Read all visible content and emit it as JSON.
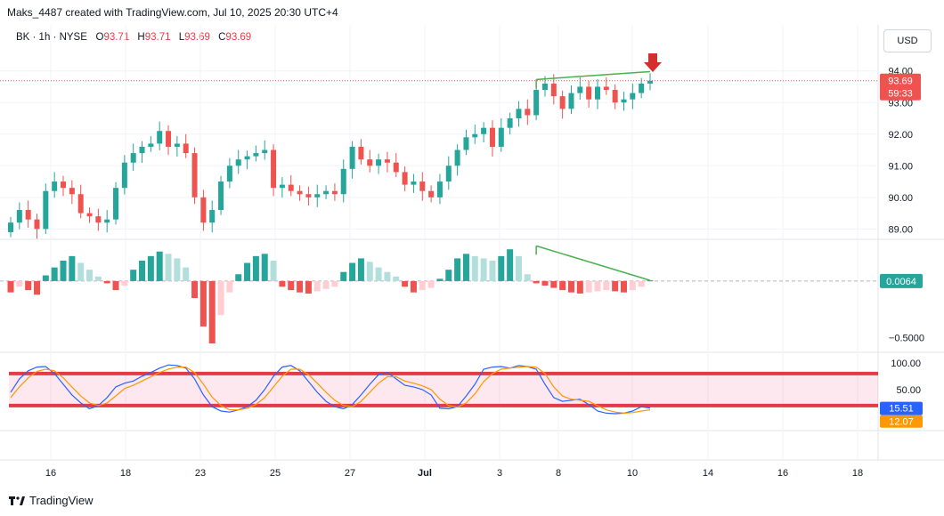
{
  "header": {
    "credit": "Maks_4487 created with TradingView.com, Jul 10, 2025 20:30 UTC+4"
  },
  "legend": {
    "symbol": "BK · 1h · NYSE",
    "open_label": "O",
    "open": "93.71",
    "high_label": "H",
    "high": "93.71",
    "low_label": "L",
    "low": "93.69",
    "close_label": "C",
    "close": "93.69"
  },
  "currency": "USD",
  "footer": {
    "brand": "TradingView"
  },
  "colors": {
    "up": "#26a69a",
    "down": "#ef5350",
    "up_light": "#b2dfdb",
    "down_light": "#ffcdd2",
    "trendline": "#4caf50",
    "stoch_k": "#2962ff",
    "stoch_d": "#ff9800",
    "band": "#e53946",
    "arrow": "#d32f2f"
  },
  "chart_data": [
    {
      "type": "candlestick",
      "symbol": "BK",
      "interval": "1h",
      "y_ticks": [
        "94.00",
        "93.00",
        "92.00",
        "91.00",
        "90.00",
        "89.00"
      ],
      "ylim": [
        88.7,
        95.4
      ],
      "last_price": "93.69",
      "countdown": "59:33",
      "trendline": [
        [
          117,
          93.73
        ],
        [
          178,
          93.98
        ]
      ],
      "close": [
        89.2,
        89.6,
        89.3,
        89.0,
        90.2,
        90.5,
        90.3,
        90.1,
        89.5,
        89.4,
        89.2,
        89.3,
        90.3,
        91.1,
        91.4,
        91.6,
        91.7,
        92.1,
        91.6,
        91.7,
        91.4,
        90.0,
        89.2,
        89.6,
        90.5,
        91.0,
        91.2,
        91.3,
        91.4,
        91.5,
        90.3,
        90.4,
        90.2,
        90.1,
        90.0,
        90.1,
        90.2,
        90.1,
        90.9,
        91.6,
        91.2,
        91.0,
        91.2,
        91.1,
        90.8,
        90.4,
        90.5,
        90.2,
        90.0,
        90.5,
        91.0,
        91.5,
        91.9,
        92.0,
        92.2,
        91.6,
        92.2,
        92.5,
        92.8,
        92.6,
        93.4,
        93.6,
        93.2,
        92.8,
        93.3,
        93.5,
        93.1,
        93.5,
        93.4,
        93.0,
        93.1,
        93.3,
        93.6,
        93.69
      ],
      "x_ticks": [
        "16",
        "18",
        "23",
        "25",
        "27",
        "Jul",
        "3",
        "8",
        "10",
        "14",
        "16",
        "18"
      ]
    },
    {
      "type": "bar",
      "indicator": "histogram oscillator",
      "y_ticks": [
        "−0.5000"
      ],
      "last_value": "0.0064",
      "ylim": [
        -0.62,
        0.36
      ],
      "trendline": [
        [
          117,
          0.31
        ],
        [
          146,
          0.0064
        ]
      ],
      "values": [
        -0.1,
        -0.05,
        -0.08,
        -0.12,
        0.05,
        0.12,
        0.18,
        0.22,
        0.16,
        0.1,
        0.04,
        -0.02,
        -0.08,
        -0.04,
        0.1,
        0.18,
        0.22,
        0.26,
        0.24,
        0.2,
        0.12,
        -0.15,
        -0.4,
        -0.55,
        -0.3,
        -0.1,
        0.06,
        0.16,
        0.22,
        0.24,
        0.18,
        -0.05,
        -0.08,
        -0.1,
        -0.11,
        -0.09,
        -0.07,
        -0.05,
        0.08,
        0.16,
        0.2,
        0.17,
        0.12,
        0.08,
        0.04,
        -0.05,
        -0.1,
        -0.08,
        -0.06,
        0.02,
        0.1,
        0.2,
        0.24,
        0.22,
        0.2,
        0.18,
        0.22,
        0.28,
        0.22,
        0.06,
        -0.02,
        -0.04,
        -0.06,
        -0.08,
        -0.1,
        -0.11,
        -0.1,
        -0.09,
        -0.08,
        -0.09,
        -0.1,
        -0.08,
        -0.05,
        0.0064
      ]
    },
    {
      "type": "line",
      "indicator": "stochastic",
      "y_ticks": [
        "100.00",
        "50.00"
      ],
      "ylim": [
        -25,
        118
      ],
      "band": [
        80,
        20
      ],
      "series": [
        {
          "values": [
            45,
            70,
            85,
            92,
            93,
            80,
            60,
            40,
            25,
            14,
            20,
            35,
            55,
            62,
            66,
            75,
            82,
            90,
            96,
            95,
            90,
            70,
            40,
            18,
            10,
            8,
            12,
            18,
            30,
            50,
            75,
            92,
            95,
            85,
            65,
            45,
            28,
            18,
            14,
            22,
            40,
            60,
            78,
            82,
            70,
            58,
            55,
            50,
            40,
            15,
            14,
            18,
            38,
            60,
            88,
            92,
            93,
            90,
            95,
            93,
            88,
            60,
            35,
            28,
            30,
            32,
            22,
            10,
            6,
            5,
            6,
            10,
            18,
            15.51
          ]
        },
        {
          "values": [
            35,
            55,
            72,
            84,
            88,
            85,
            72,
            55,
            38,
            25,
            20,
            25,
            38,
            52,
            58,
            66,
            74,
            82,
            88,
            92,
            92,
            82,
            60,
            36,
            20,
            12,
            12,
            15,
            22,
            35,
            55,
            75,
            88,
            88,
            78,
            62,
            45,
            30,
            20,
            18,
            28,
            45,
            62,
            74,
            74,
            66,
            62,
            57,
            50,
            32,
            20,
            17,
            25,
            42,
            65,
            80,
            88,
            90,
            92,
            93,
            92,
            80,
            55,
            38,
            32,
            30,
            28,
            20,
            12,
            8,
            6,
            7,
            10,
            12.07
          ]
        }
      ],
      "last_k": "15.51",
      "last_d": "12.07"
    }
  ]
}
